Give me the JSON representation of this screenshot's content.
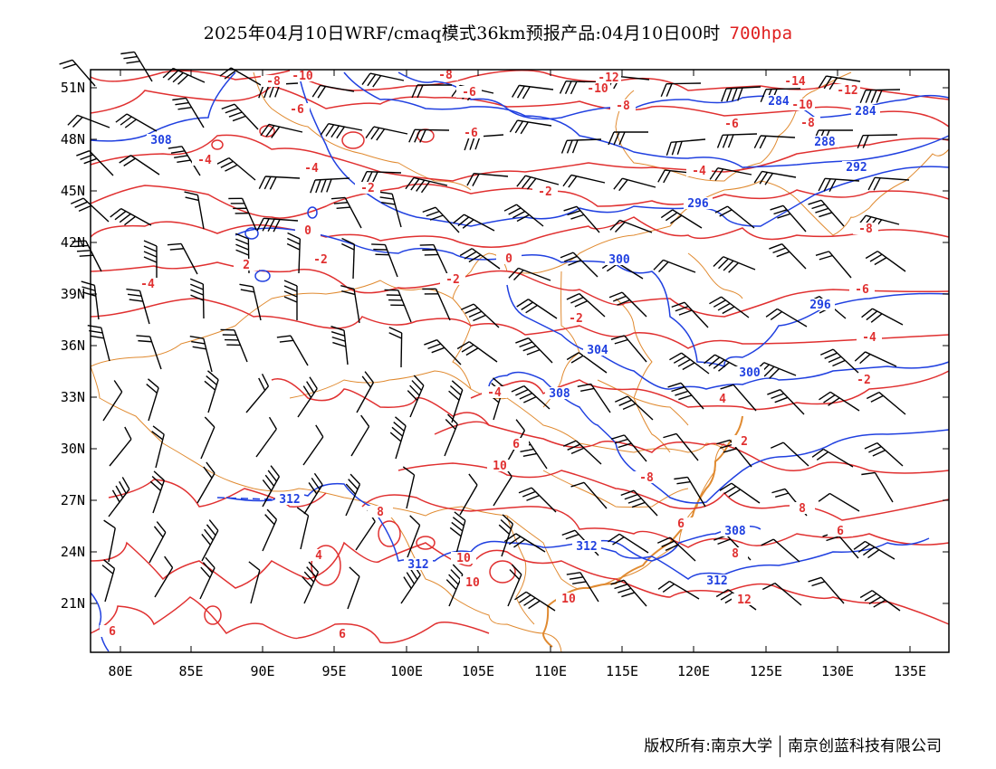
{
  "title": {
    "text": "2025年04月10日WRF/cmaq模式36km预报产品:04月10日00时",
    "level": "700hpa",
    "level_color": "#e02020"
  },
  "axes": {
    "lat_labels": [
      "51N",
      "48N",
      "45N",
      "42N",
      "39N",
      "36N",
      "33N",
      "30N",
      "27N",
      "24N",
      "21N"
    ],
    "lon_labels": [
      "80E",
      "85E",
      "90E",
      "95E",
      "100E",
      "105E",
      "110E",
      "115E",
      "120E",
      "125E",
      "130E",
      "135E"
    ]
  },
  "colors": {
    "height_contour": "#2040e0",
    "temperature_contour": "#e03030",
    "boundary": "#e08a30",
    "wind_barb": "#000000"
  },
  "height_labels": [
    "308",
    "288",
    "292",
    "296",
    "300",
    "296",
    "304",
    "300",
    "308",
    "312",
    "312",
    "312",
    "308",
    "312",
    "284",
    "284"
  ],
  "temperature_labels": [
    "-8",
    "-10",
    "-6",
    "-4",
    "-4",
    "-2",
    "-2",
    "0",
    "-2",
    "-2",
    "2",
    "-4",
    "-8",
    "-12",
    "-10",
    "-8",
    "-14",
    "-12",
    "-10",
    "-8",
    "-6",
    "-4",
    "-6",
    "-8",
    "-6",
    "-4",
    "-2",
    "0",
    "2",
    "4",
    "6",
    "6",
    "8",
    "10",
    "10",
    "10",
    "10",
    "12",
    "6",
    "8",
    "4",
    "8",
    "6",
    "6",
    "-6",
    "-4",
    "-2",
    "-8",
    "4",
    "4",
    "-6",
    "-4",
    "-2",
    "-6",
    "-8"
  ],
  "credit": {
    "owner_left": "版权所有:南京大学",
    "owner_right": "南京创蓝科技有限公司"
  }
}
